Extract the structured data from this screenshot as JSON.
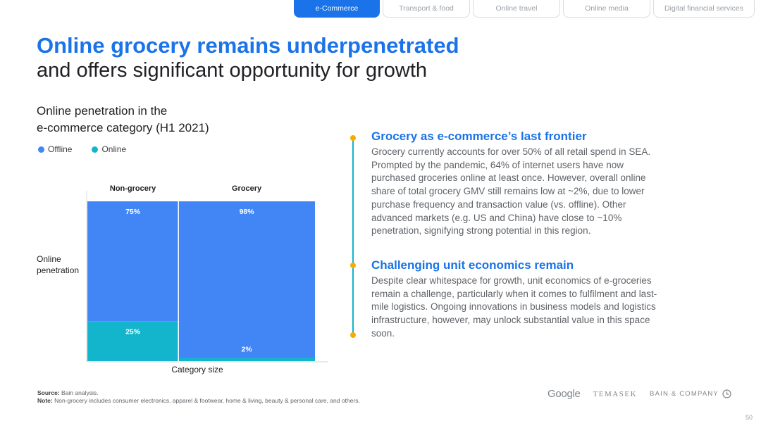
{
  "tabs": [
    {
      "label": "e-Commerce",
      "active": true
    },
    {
      "label": "Transport & food",
      "active": false
    },
    {
      "label": "Online travel",
      "active": false
    },
    {
      "label": "Online media",
      "active": false
    },
    {
      "label": "Digital financial services",
      "active": false
    }
  ],
  "title": {
    "line1": "Online grocery remains underpenetrated",
    "line2": "and offers significant opportunity for growth"
  },
  "chart_heading": {
    "line1": "Online penetration in the",
    "line2": "e-commerce category (H1 2021)"
  },
  "legend": [
    {
      "label": "Offline",
      "color": "#4285f4"
    },
    {
      "label": "Online",
      "color": "#12b5cb"
    }
  ],
  "chart_data": {
    "type": "bar",
    "subtype": "marimekko (variable-width 100% stacked)",
    "categories": [
      "Non-grocery",
      "Grocery"
    ],
    "category_widths": [
      0.4,
      0.6
    ],
    "series": [
      {
        "name": "Online",
        "values": [
          25,
          2
        ],
        "labels": [
          "25%",
          "2%"
        ],
        "color": "#12b5cb"
      },
      {
        "name": "Offline",
        "values": [
          75,
          98
        ],
        "labels": [
          "75%",
          "98%"
        ],
        "color": "#4285f4"
      }
    ],
    "xlabel": "Category size",
    "ylabel_lines": [
      "Online",
      "penetration"
    ],
    "ylim": [
      0,
      100
    ]
  },
  "sections": [
    {
      "heading": "Grocery as e-commerce’s last frontier",
      "body": "Grocery currently accounts for over 50% of all retail spend in SEA. Prompted by the pandemic, 64% of internet users have now purchased groceries online at least once. However, overall online share of total grocery GMV still remains low at ~2%, due to lower purchase frequency and transaction value (vs. offline). Other advanced markets (e.g. US and China) have close to ~10% penetration, signifying strong potential in this region."
    },
    {
      "heading": "Challenging unit economics remain",
      "body": "Despite clear whitespace for growth, unit economics of e-groceries remain a challenge, particularly when it comes to fulfilment and last-mile logistics. Ongoing innovations in business models and logistics infrastructure, however, may unlock substantial value in this space soon."
    }
  ],
  "footer": {
    "source_label": "Source:",
    "source_text": " Bain analysis.",
    "note_label": "Note:",
    "note_text": " Non-grocery includes consumer electronics, apparel & footwear, home & living, beauty & personal care, and others."
  },
  "logos": {
    "google": "Google",
    "temasek": "TEMASEK",
    "bain": "BAIN & COMPANY"
  },
  "page_number": "50"
}
